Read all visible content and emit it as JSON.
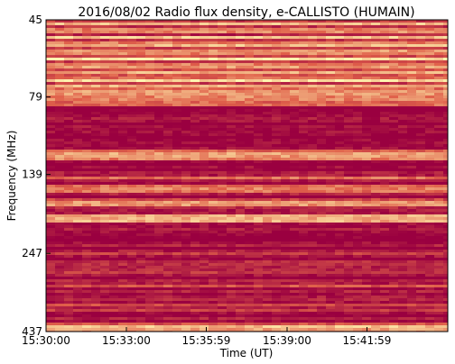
{
  "chart_data": {
    "type": "spectrogram",
    "title": "2016/08/02  Radio flux density, e-CALLISTO (HUMAIN)",
    "xlabel": "Time (UT)",
    "ylabel": "Frequency (MHz)",
    "xlim": [
      "15:30:00",
      "15:45:00"
    ],
    "xticks": [
      "15:30:00",
      "15:33:00",
      "15:35:59",
      "15:39:00",
      "15:41:59"
    ],
    "ylim": [
      45,
      437
    ],
    "ylog": true,
    "yinverted": true,
    "yticks": [
      45,
      79,
      139,
      247,
      437
    ]
  }
}
